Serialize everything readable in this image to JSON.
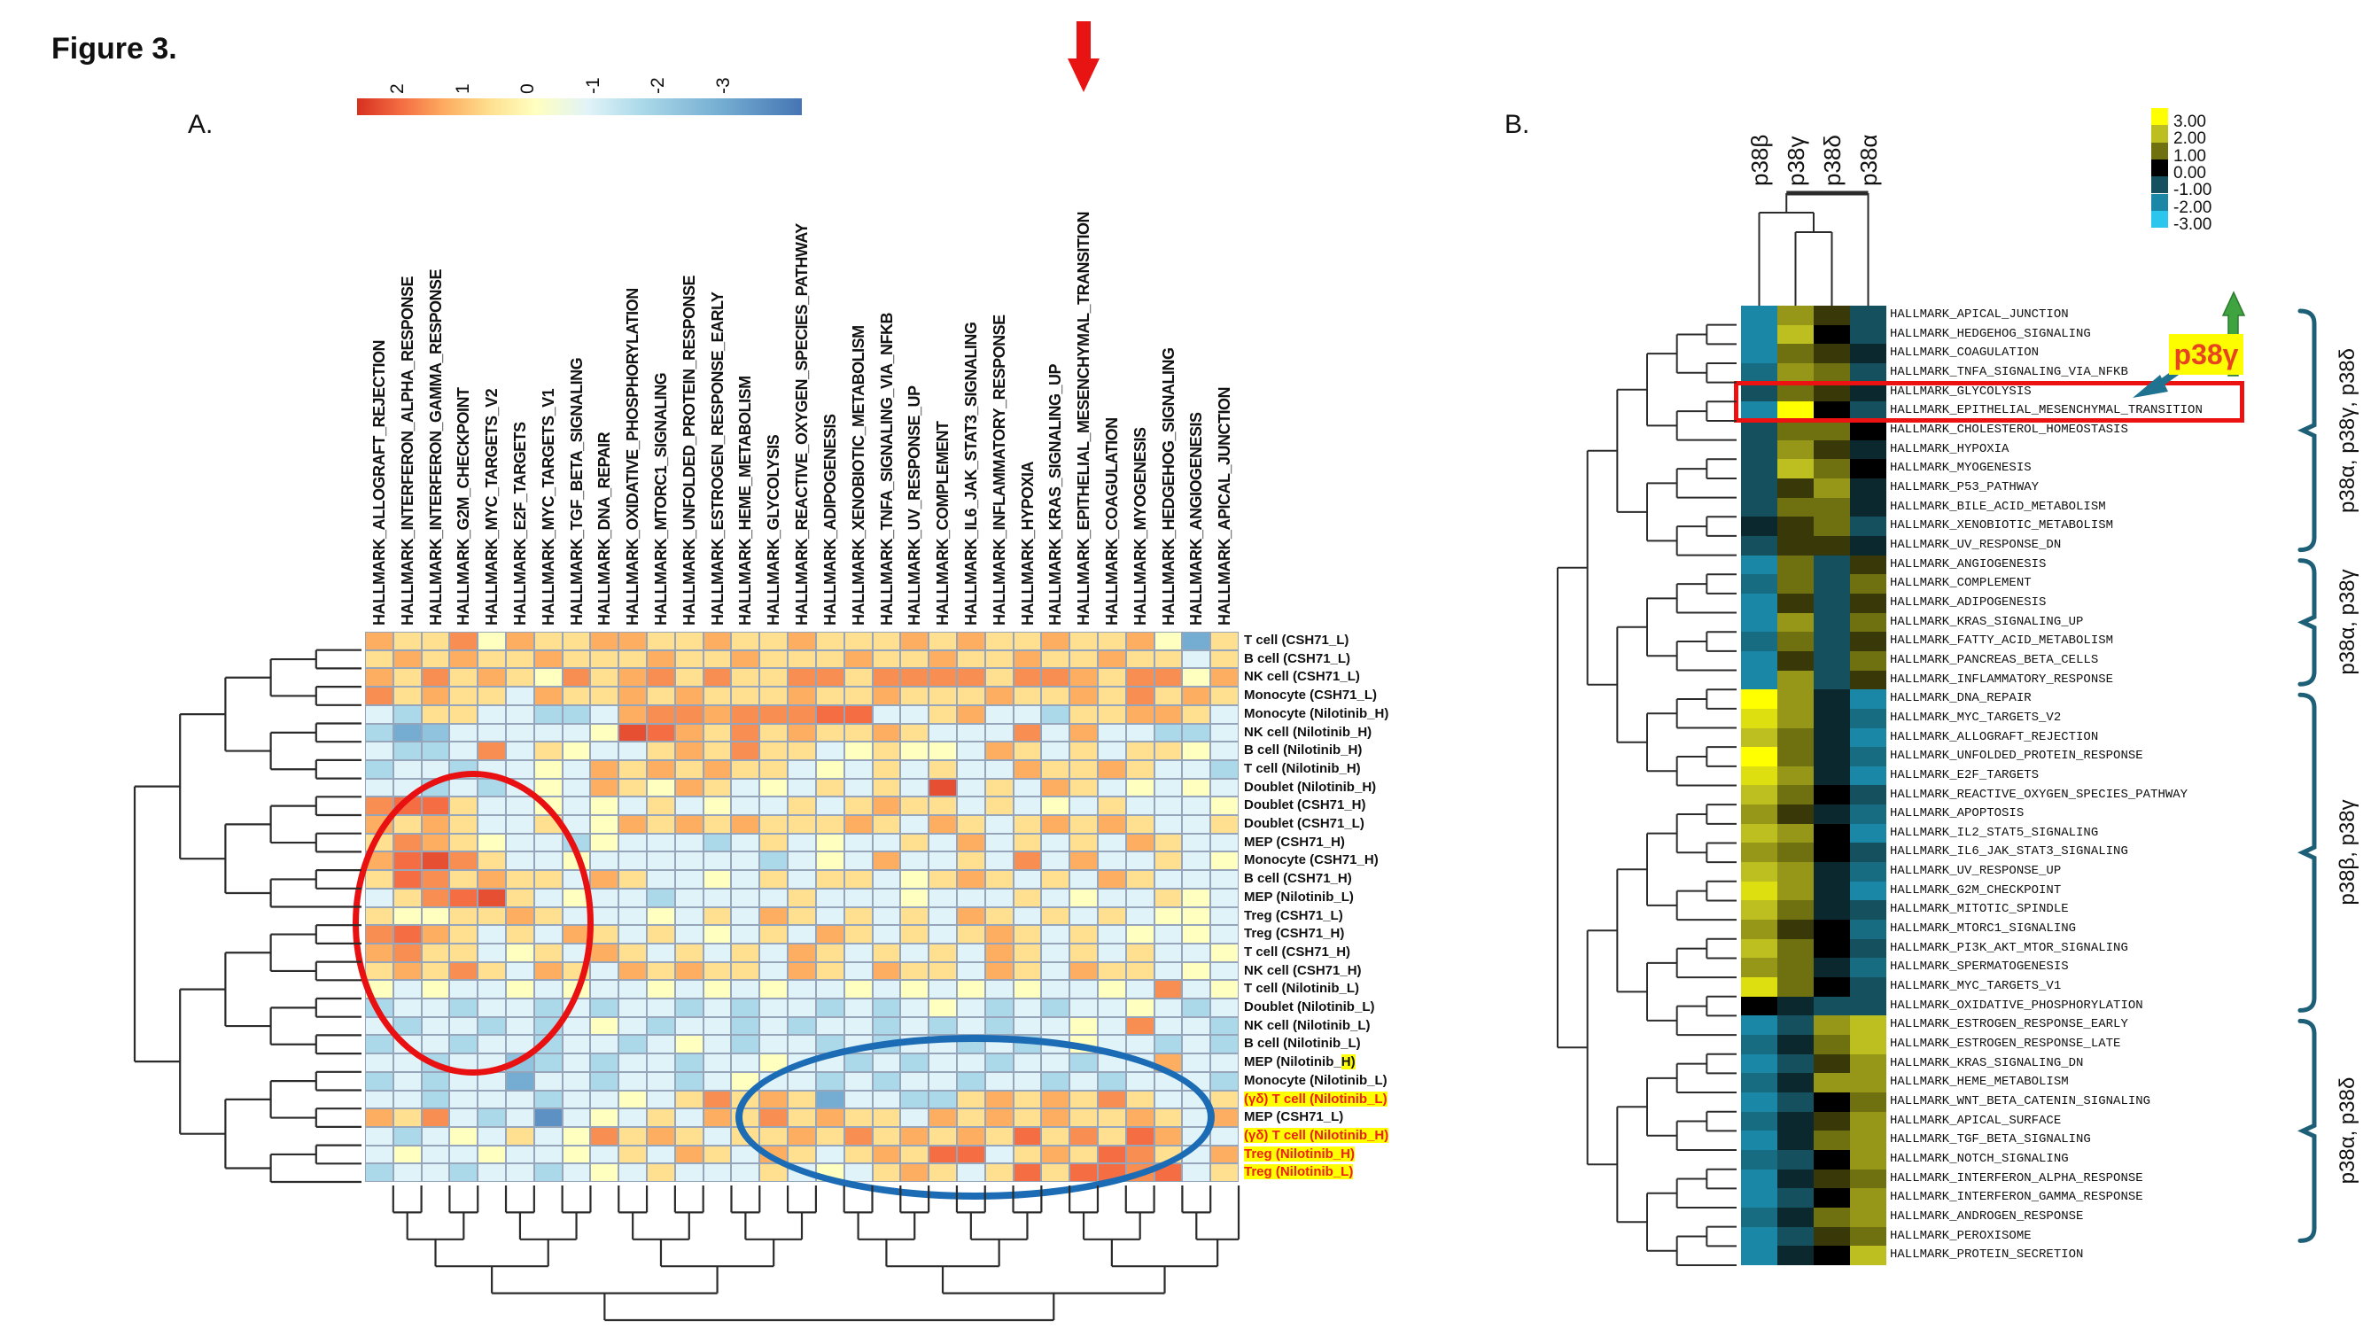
{
  "texts": {
    "figure_title": "Figure 3.",
    "panel_a_label": "A.",
    "panel_b_label": "B.",
    "p38g_callout": "p38γ"
  },
  "colors": {
    "accent_red": "#e81313",
    "annotation_circle_red": "#e81010",
    "annotation_ellipse_blue": "#1b6cb5",
    "bracket_teal": "#1e5f78",
    "teal_arrow": "#1f7391",
    "green_arrow": "#3fa33f",
    "highlight_yellow": "#ffff00",
    "callout_text": "#e8431f",
    "dendrogram": "#2b2b2b",
    "cell_border_a": "#97a5ba"
  },
  "chart_data": [
    {
      "id": "A",
      "type": "heatmap",
      "value_encoding": "chars a..m map to values -3..+3 in 0.5 steps",
      "value_range": [
        -3,
        3
      ],
      "legend": {
        "ticks": [
          "2",
          "1",
          "0",
          "-1",
          "-2",
          "-3"
        ],
        "gradient_stops": {
          "2": "#d7301f",
          "1.5": "#f46d43",
          "1": "#fdae61",
          "0.5": "#fee090",
          "0": "#ffffbf",
          "-0.5": "#e0f3f8",
          "-1": "#abd9e9",
          "-2": "#74add1",
          "-3": "#4575b4"
        }
      },
      "columns": [
        "HALLMARK_ALLOGRAFT_REJECTION",
        "HALLMARK_INTERFERON_ALPHA_RESPONSE",
        "HALLMARK_INTERFERON_GAMMA_RESPONSE",
        "HALLMARK_G2M_CHECKPOINT",
        "HALLMARK_MYC_TARGETS_V2",
        "HALLMARK_E2F_TARGETS",
        "HALLMARK_MYC_TARGETS_V1",
        "HALLMARK_TGF_BETA_SIGNALING",
        "HALLMARK_DNA_REPAIR",
        "HALLMARK_OXIDATIVE_PHOSPHORYLATION",
        "HALLMARK_MTORC1_SIGNALING",
        "HALLMARK_UNFOLDED_PROTEIN_RESPONSE",
        "HALLMARK_ESTROGEN_RESPONSE_EARLY",
        "HALLMARK_HEME_METABOLISM",
        "HALLMARK_GLYCOLYSIS",
        "HALLMARK_REACTIVE_OXYGEN_SPECIES_PATHWAY",
        "HALLMARK_ADIPOGENESIS",
        "HALLMARK_XENOBIOTIC_METABOLISM",
        "HALLMARK_TNFA_SIGNALING_VIA_NFKB",
        "HALLMARK_UV_RESPONSE_UP",
        "HALLMARK_COMPLEMENT",
        "HALLMARK_IL6_JAK_STAT3_SIGNALING",
        "HALLMARK_INFLAMMATORY_RESPONSE",
        "HALLMARK_HYPOXIA",
        "HALLMARK_KRAS_SIGNALING_UP",
        "HALLMARK_EPITHELIAL_MESENCHYMAL_TRANSITION",
        "HALLMARK_COAGULATION",
        "HALLMARK_MYOGENESIS",
        "HALLMARK_HEDGEHOG_SIGNALING",
        "HALLMARK_ANGIOGENESIS",
        "HALLMARK_APICAL_JUNCTION"
      ],
      "rows": [
        {
          "label": "T cell (CSH71_L)",
          "style": "plain",
          "v": "ihhjgihhiihhihhihhhihihhihhigch"
        },
        {
          "label": "B cell (CSH71_L)",
          "style": "plain",
          "v": "hihihhihhhihhihhhihhihhihhihhfh"
        },
        {
          "label": "NK cell (CSH71_L)",
          "style": "plain",
          "v": "ihjhihgjhijhjhhjjhjjjjhjjihjjgi"
        },
        {
          "label": "Monocyte (CSH71_L)",
          "style": "plain",
          "v": "jhihhfihhihihhhihhihhhihhihjhih"
        },
        {
          "label": "Monocyte (Nilotinib_H)",
          "style": "plain",
          "v": "fehhffeefijjijjjkkffhiffehhiihf"
        },
        {
          "label": "NK cell (Nilotinib_H)",
          "style": "plain",
          "v": "ecdfffffglkihjhihhihfffjfiffeef"
        },
        {
          "label": "B cell (Nilotinib_H)",
          "style": "plain",
          "v": "feefjfhgffhihjhhfghggfihfhfhhgf"
        },
        {
          "label": "T cell (Nilotinib_H)",
          "style": "plain",
          "v": "effeffgfihihihhfgfhfhffihhihffe"
        },
        {
          "label": "Doublet (Nilotinib_H)",
          "style": "plain",
          "v": "ffefefgfihgihfgfhfhflfhfihfgfgf"
        },
        {
          "label": "Doublet (CSH71_H)",
          "style": "plain",
          "v": "jkkhffgfgfhfgffhfhihhfhfgfhfffg"
        },
        {
          "label": "Doublet (CSH71_L)",
          "style": "plain",
          "v": "ihihffhfgihihihhhihfihfhihihffh"
        },
        {
          "label": "MEP (CSH71_H)",
          "style": "plain",
          "v": "hjihgffegfffefhfgffhfifhfhfihff"
        },
        {
          "label": "Monocyte (CSH71_H)",
          "style": "plain",
          "v": "ikljhffgffffffefgfiffhfjfiffhfg"
        },
        {
          "label": "B cell (CSH71_H)",
          "style": "plain",
          "v": "hkjhihhfihffgfhfhhfghihfhfihfff"
        },
        {
          "label": "MEP (Nilotinib_L)",
          "style": "plain",
          "v": "fhjklhfgffeffffhfffgfffhfgffhgf"
        },
        {
          "label": "Treg (CSH71_L)",
          "style": "plain",
          "v": "hgghhihfffgfhfihfhfhfihfhfhfggf"
        },
        {
          "label": "Treg (CSH71_H)",
          "style": "plain",
          "v": "jkihfhfihfhfgfhfihfhfhihfhfgfgf"
        },
        {
          "label": "T cell (CSH71_H)",
          "style": "plain",
          "v": "ijhhfghfihfhfhfihfhfhfihfhfhffg"
        },
        {
          "label": "NK cell (CSH71_H)",
          "style": "plain",
          "v": "hihjhfihfihihhfihfihhfihfihhfgf"
        },
        {
          "label": "T cell (Nilotinib_L)",
          "style": "plain",
          "v": "gfgffgfgffgfgfgffgfgfgfgffgfjfg"
        },
        {
          "label": "Doublet (Nilotinib_L)",
          "style": "plain",
          "v": "effeffefeffefeffefefgfefeffgfef"
        },
        {
          "label": "NK cell (Nilotinib_L)",
          "style": "plain",
          "v": "feffefefgfeffefeffefefeffgfjffe"
        },
        {
          "label": "B cell (Nilotinib_L)",
          "style": "plain",
          "v": "effeffeffefgfeffefeffefefgffefe"
        },
        {
          "label": "MEP (Nilotinib_H)",
          "style": "tail-hl",
          "tail": "H)",
          "v": "ffeffdefeffeffgffefeffeffeffiff"
        },
        {
          "label": "Monocyte (Nilotinib_L)",
          "style": "plain",
          "v": "efeffcffeffefgffefeffeffefefffe"
        },
        {
          "label": "(γδ) T cell  (Nilotinib_L)",
          "style": "red-hl",
          "v": "ffefffeffgfhjhihcffeehihihjhffh"
        },
        {
          "label": "MEP (CSH71_L)",
          "style": "plain",
          "v": "ihjfefbfgfhfihjhihhfihihihhihfi"
        },
        {
          "label": "(γδ) T cell  (Nilotinib_H)",
          "style": "red-hl",
          "v": "fefgfhfgjhihfhhihjhihihkhjhkiff"
        },
        {
          "label": "Treg (Nilotinib_H)",
          "style": "red-hl",
          "v": "fgffgffgfhfihfihfhihkkfhihkjhfi"
        },
        {
          "label": "Treg (Nilotinib_L)",
          "style": "red-hl",
          "v": "effeffefgfhfffhfgfhihfhkhkkjkfh"
        }
      ],
      "annotations": {
        "red_arrow_column": "HALLMARK_EPITHELIAL_MESENCHYMAL_TRANSITION",
        "red_circle": "cluster of strong enrichment in left columns, middle rows",
        "blue_ellipse": "warm cluster in lower-right rows (Nilotinib Treg / γδ T cells)"
      }
    },
    {
      "id": "B",
      "type": "heatmap",
      "value_encoding": "chars a..m map to values -3..+3 in 0.5 steps",
      "columns": [
        "p38β",
        "p38γ",
        "p38δ",
        "p38α"
      ],
      "legend": {
        "labels": [
          "3.00",
          "2.00",
          "1.00",
          "0.00",
          "-1.00",
          "-2.00",
          "-3.00"
        ],
        "colors": [
          "#ffff00",
          "#bdbe1f",
          "#6f7010",
          "#000000",
          "#15505e",
          "#1b87a6",
          "#2bc6ee"
        ]
      },
      "rows": [
        {
          "label": "HALLMARK_APICAL_JUNCTION",
          "v": "cjhe"
        },
        {
          "label": "HALLMARK_HEDGEHOG_SIGNALING",
          "v": "ckge"
        },
        {
          "label": "HALLMARK_COAGULATION",
          "v": "cihf"
        },
        {
          "label": "HALLMARK_TNFA_SIGNALING_VIA_NFKB",
          "v": "djie"
        },
        {
          "label": "HALLMARK_GLYCOLYSIS",
          "v": "eihf"
        },
        {
          "label": "HALLMARK_EPITHELIAL_MESENCHYMAL_TRANSITION",
          "v": "cmge"
        },
        {
          "label": "HALLMARK_CHOLESTEROL_HOMEOSTASIS",
          "v": "eiig"
        },
        {
          "label": "HALLMARK_HYPOXIA",
          "v": "ejhf"
        },
        {
          "label": "HALLMARK_MYOGENESIS",
          "v": "ekig"
        },
        {
          "label": "HALLMARK_P53_PATHWAY",
          "v": "ehjf"
        },
        {
          "label": "HALLMARK_BILE_ACID_METABOLISM",
          "v": "eiif"
        },
        {
          "label": "HALLMARK_XENOBIOTIC_METABOLISM",
          "v": "fhie"
        },
        {
          "label": "HALLMARK_UV_RESPONSE_DN",
          "v": "ehhf"
        },
        {
          "label": "HALLMARK_ANGIOGENESIS",
          "v": "cieh"
        },
        {
          "label": "HALLMARK_COMPLEMENT",
          "v": "diei"
        },
        {
          "label": "HALLMARK_ADIPOGENESIS",
          "v": "cheh"
        },
        {
          "label": "HALLMARK_KRAS_SIGNALING_UP",
          "v": "cjei"
        },
        {
          "label": "HALLMARK_FATTY_ACID_METABOLISM",
          "v": "dieh"
        },
        {
          "label": "HALLMARK_PANCREAS_BETA_CELLS",
          "v": "chei"
        },
        {
          "label": "HALLMARK_INFLAMMATORY_RESPONSE",
          "v": "cjeh"
        },
        {
          "label": "HALLMARK_DNA_REPAIR",
          "v": "mjfc"
        },
        {
          "label": "HALLMARK_MYC_TARGETS_V2",
          "v": "ljfd"
        },
        {
          "label": "HALLMARK_ALLOGRAFT_REJECTION",
          "v": "kifc"
        },
        {
          "label": "HALLMARK_UNFOLDED_PROTEIN_RESPONSE",
          "v": "mifd"
        },
        {
          "label": "HALLMARK_E2F_TARGETS",
          "v": "ljfc"
        },
        {
          "label": "HALLMARK_REACTIVE_OXYGEN_SPECIES_PATHWAY",
          "v": "kige"
        },
        {
          "label": "HALLMARK_APOPTOSIS",
          "v": "jhfd"
        },
        {
          "label": "HALLMARK_IL2_STAT5_SIGNALING",
          "v": "kjgc"
        },
        {
          "label": "HALLMARK_IL6_JAK_STAT3_SIGNALING",
          "v": "jige"
        },
        {
          "label": "HALLMARK_UV_RESPONSE_UP",
          "v": "kjfd"
        },
        {
          "label": "HALLMARK_G2M_CHECKPOINT",
          "v": "ljfc"
        },
        {
          "label": "HALLMARK_MITOTIC_SPINDLE",
          "v": "kife"
        },
        {
          "label": "HALLMARK_MTORC1_SIGNALING",
          "v": "jhgd"
        },
        {
          "label": "HALLMARK_PI3K_AKT_MTOR_SIGNALING",
          "v": "kige"
        },
        {
          "label": "HALLMARK_SPERMATOGENESIS",
          "v": "jifd"
        },
        {
          "label": "HALLMARK_MYC_TARGETS_V1",
          "v": "lige"
        },
        {
          "label": "HALLMARK_OXIDATIVE_PHOSPHORYLATION",
          "v": "gfee"
        },
        {
          "label": "HALLMARK_ESTROGEN_RESPONSE_EARLY",
          "v": "cejk"
        },
        {
          "label": "HALLMARK_ESTROGEN_RESPONSE_LATE",
          "v": "dfik"
        },
        {
          "label": "HALLMARK_KRAS_SIGNALING_DN",
          "v": "cehj"
        },
        {
          "label": "HALLMARK_HEME_METABOLISM",
          "v": "dfjj"
        },
        {
          "label": "HALLMARK_WNT_BETA_CATENIN_SIGNALING",
          "v": "cegi"
        },
        {
          "label": "HALLMARK_APICAL_SURFACE",
          "v": "dfhj"
        },
        {
          "label": "HALLMARK_TGF_BETA_SIGNALING",
          "v": "cfij"
        },
        {
          "label": "HALLMARK_NOTCH_SIGNALING",
          "v": "degj"
        },
        {
          "label": "HALLMARK_INTERFERON_ALPHA_RESPONSE",
          "v": "cfhi"
        },
        {
          "label": "HALLMARK_INTERFERON_GAMMA_RESPONSE",
          "v": "cegj"
        },
        {
          "label": "HALLMARK_ANDROGEN_RESPONSE",
          "v": "dfij"
        },
        {
          "label": "HALLMARK_PEROXISOME",
          "v": "cehi"
        },
        {
          "label": "HALLMARK_PROTEIN_SECRETION",
          "v": "cfgk"
        }
      ],
      "highlight": {
        "boxed_row": "HALLMARK_EPITHELIAL_MESENCHYMAL_TRANSITION",
        "callout_text": "p38γ"
      },
      "brackets": [
        {
          "label": "p38α, p38γ, p38δ",
          "row_start": 1,
          "row_end": 13
        },
        {
          "label": "p38α, p38γ",
          "row_start": 14,
          "row_end": 20
        },
        {
          "label": "p38β, p38γ",
          "row_start": 21,
          "row_end": 37
        },
        {
          "label": "p38α, p38δ",
          "row_start": 38,
          "row_end": 49
        }
      ]
    }
  ]
}
